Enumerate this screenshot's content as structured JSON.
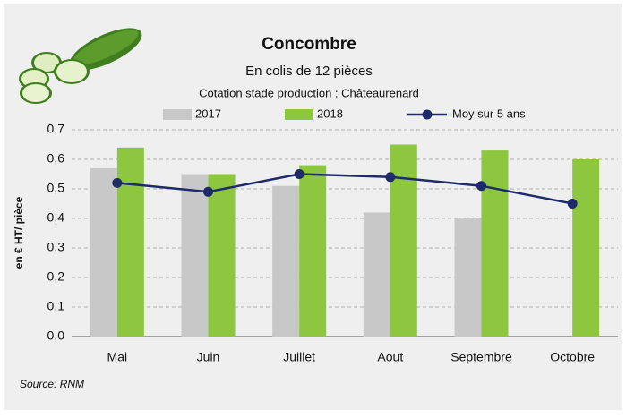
{
  "chart_data": {
    "type": "bar",
    "title": "Concombre",
    "subtitle": "En colis de 12 pièces",
    "note": "Cotation stade production : Châteaurenard",
    "y_label": "en € HT/ pièce",
    "source": "Source: RNM",
    "categories": [
      "Mai",
      "Juin",
      "Juillet",
      "Aout",
      "Septembre",
      "Octobre"
    ],
    "series": [
      {
        "name": "2017",
        "color": "#c8c8c8",
        "type": "bar",
        "values": [
          0.57,
          0.55,
          0.51,
          0.42,
          0.4,
          null
        ]
      },
      {
        "name": "2018",
        "color": "#8dc63f",
        "type": "bar",
        "values": [
          0.64,
          0.55,
          0.58,
          0.65,
          0.63,
          0.6
        ]
      },
      {
        "name": "Moy sur 5 ans",
        "color": "#1f2a6b",
        "type": "line",
        "values": [
          0.52,
          0.49,
          0.55,
          0.54,
          0.51,
          0.45
        ]
      }
    ],
    "ylim": [
      0,
      0.7
    ],
    "yticks": [
      {
        "value": 0,
        "label": "0,0"
      },
      {
        "value": 0.1,
        "label": "0,1"
      },
      {
        "value": 0.2,
        "label": "0,2"
      },
      {
        "value": 0.3,
        "label": "0,3"
      },
      {
        "value": 0.4,
        "label": "0,4"
      },
      {
        "value": 0.5,
        "label": "0,5"
      },
      {
        "value": 0.6,
        "label": "0,6"
      },
      {
        "value": 0.7,
        "label": "0,7"
      }
    ],
    "grid": true
  }
}
